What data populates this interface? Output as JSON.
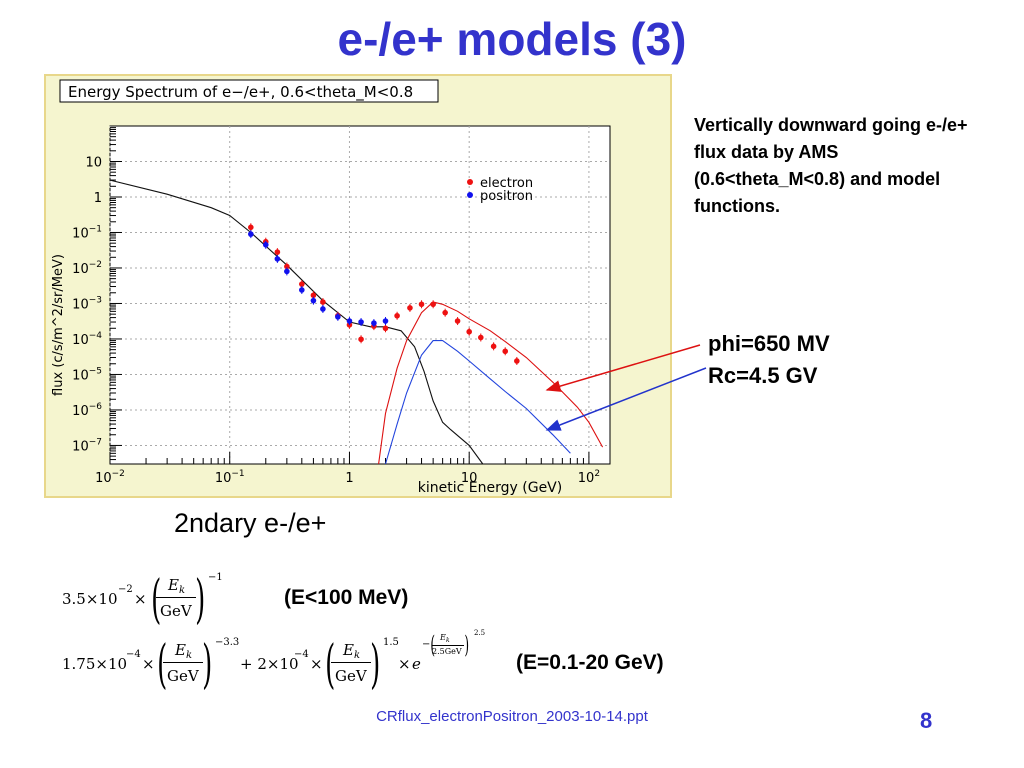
{
  "slide": {
    "title": "e-/e+ models (3)",
    "description": "Vertically downward going e-/e+ flux data by AMS (0.6<theta_M<0.8) and model functions.",
    "params_line1": "phi=650 MV",
    "params_line2": "Rc=4.5 GV",
    "secondary_label": "2ndary e-/e+",
    "range1": "(E<100 MeV)",
    "range2": "(E=0.1-20 GeV)",
    "footer": "CRflux_electronPositron_2003-10-14.ppt",
    "page_number": "8"
  },
  "formulas": {
    "f1": {
      "coef": "3.5×10",
      "exp": "−2",
      "times": "×",
      "num": "E",
      "num_sub": "k",
      "den": "GeV",
      "pow": "−1"
    },
    "f2": {
      "coef1": "1.75×10",
      "exp1": "−4",
      "times": "×",
      "pow1": "−3.3",
      "plus": "+ 2×10",
      "exp2": "−4",
      "pow2": "1.5",
      "e": "e",
      "num": "E",
      "num_sub": "k",
      "den": "GeV",
      "minus": "−",
      "inner_den": "2.5GeV",
      "inner_pow": "2.5"
    }
  },
  "chart_data": {
    "type": "scatter",
    "title": "Energy Spectrum of e−/e+, 0.6<theta_M<0.8",
    "xlabel": "kinetic Energy (GeV)",
    "ylabel": "flux (c/s/m^2/sr/MeV)",
    "xscale": "log",
    "yscale": "log",
    "xlim": [
      0.01,
      150
    ],
    "ylim": [
      3e-08,
      100
    ],
    "grid": true,
    "legend_position": "top-right",
    "x_ticks": [
      {
        "v": 0.01,
        "base": "10",
        "exp": "−2"
      },
      {
        "v": 0.1,
        "base": "10",
        "exp": "−1"
      },
      {
        "v": 1,
        "base": "1",
        "exp": ""
      },
      {
        "v": 10,
        "base": "10",
        "exp": ""
      },
      {
        "v": 100,
        "base": "10",
        "exp": "2"
      }
    ],
    "y_ticks": [
      {
        "v": 10,
        "base": "10",
        "exp": ""
      },
      {
        "v": 1,
        "base": "1",
        "exp": ""
      },
      {
        "v": 0.1,
        "base": "10",
        "exp": "−1"
      },
      {
        "v": 0.01,
        "base": "10",
        "exp": "−2"
      },
      {
        "v": 0.001,
        "base": "10",
        "exp": "−3"
      },
      {
        "v": 0.0001,
        "base": "10",
        "exp": "−4"
      },
      {
        "v": 1e-05,
        "base": "10",
        "exp": "−5"
      },
      {
        "v": 1e-06,
        "base": "10",
        "exp": "−6"
      },
      {
        "v": 1e-07,
        "base": "10",
        "exp": "−7"
      }
    ],
    "series": [
      {
        "name": "electron",
        "kind": "points",
        "color": "#ee1111",
        "x": [
          0.15,
          0.2,
          0.25,
          0.3,
          0.4,
          0.5,
          0.6,
          0.8,
          1.0,
          1.25,
          1.6,
          2.0,
          2.5,
          3.2,
          4.0,
          5.0,
          6.3,
          8.0,
          10,
          12.5,
          16,
          20,
          25
        ],
        "y": [
          0.14,
          0.055,
          0.028,
          0.011,
          0.0035,
          0.0017,
          0.0011,
          0.00045,
          0.00025,
          9.8e-05,
          0.00023,
          0.0002,
          0.00045,
          0.00075,
          0.00095,
          0.00095,
          0.00055,
          0.00032,
          0.00016,
          0.00011,
          6.2e-05,
          4.5e-05,
          2.4e-05
        ]
      },
      {
        "name": "positron",
        "kind": "points",
        "color": "#1111ee",
        "x": [
          0.15,
          0.2,
          0.25,
          0.3,
          0.4,
          0.5,
          0.6,
          0.8,
          1.0,
          1.25,
          1.6,
          2.0
        ],
        "y": [
          0.09,
          0.045,
          0.018,
          0.008,
          0.0024,
          0.0012,
          0.0007,
          0.00042,
          0.00032,
          0.0003,
          0.00028,
          0.00032
        ]
      },
      {
        "kind": "line",
        "color": "#111111",
        "x": [
          0.01,
          0.03,
          0.07,
          0.1,
          0.15,
          0.3,
          0.6,
          1.0,
          1.5,
          2.0,
          2.7,
          3.5,
          4.2,
          5.0,
          6.0,
          7.0,
          10,
          13
        ],
        "y": [
          3,
          1.2,
          0.5,
          0.3,
          0.1,
          0.012,
          0.0012,
          0.0003,
          0.00022,
          0.00022,
          0.00017,
          6e-05,
          1.2e-05,
          1.8e-06,
          4.5e-07,
          2.8e-07,
          1e-07,
          3e-08
        ]
      },
      {
        "kind": "line",
        "color": "#dd1111",
        "x": [
          1.75,
          2.0,
          2.5,
          3.0,
          4.0,
          5.0,
          6.0,
          8.0,
          10,
          15,
          20,
          30,
          50,
          80,
          100,
          130
        ],
        "y": [
          3e-08,
          8e-07,
          1.5e-05,
          9e-05,
          0.00055,
          0.0011,
          0.00095,
          0.0006,
          0.00037,
          0.00017,
          8.4e-05,
          3e-05,
          6e-06,
          1.2e-06,
          4.5e-07,
          9e-08
        ]
      },
      {
        "kind": "line",
        "color": "#2244dd",
        "x": [
          2.0,
          2.5,
          3.0,
          4.0,
          5.0,
          6.0,
          8.0,
          10,
          15,
          20,
          30,
          50,
          70
        ],
        "y": [
          3e-08,
          4e-07,
          3e-06,
          3.5e-05,
          9e-05,
          9e-05,
          4.5e-05,
          2.4e-05,
          7.5e-06,
          3.3e-06,
          1.1e-06,
          2e-07,
          6e-08
        ]
      }
    ]
  }
}
